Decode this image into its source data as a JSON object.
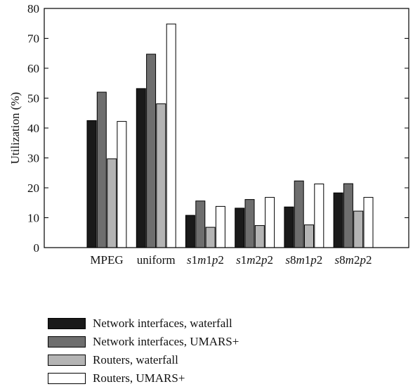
{
  "chart_data": {
    "type": "bar",
    "categories": [
      "MPEG",
      "uniform",
      "s1m1p2",
      "s1m2p2",
      "s8m1p2",
      "s8m2p2"
    ],
    "category_labels": [
      [
        {
          "t": "MPEG",
          "i": false
        }
      ],
      [
        {
          "t": "uniform",
          "i": false
        }
      ],
      [
        {
          "t": "s",
          "i": true
        },
        {
          "t": "1",
          "i": false
        },
        {
          "t": "m",
          "i": true
        },
        {
          "t": "1",
          "i": false
        },
        {
          "t": "p",
          "i": true
        },
        {
          "t": "2",
          "i": false
        }
      ],
      [
        {
          "t": "s",
          "i": true
        },
        {
          "t": "1",
          "i": false
        },
        {
          "t": "m",
          "i": true
        },
        {
          "t": "2",
          "i": false
        },
        {
          "t": "p",
          "i": true
        },
        {
          "t": "2",
          "i": false
        }
      ],
      [
        {
          "t": "s",
          "i": true
        },
        {
          "t": "8",
          "i": false
        },
        {
          "t": "m",
          "i": true
        },
        {
          "t": "1",
          "i": false
        },
        {
          "t": "p",
          "i": true
        },
        {
          "t": "2",
          "i": false
        }
      ],
      [
        {
          "t": "s",
          "i": true
        },
        {
          "t": "8",
          "i": false
        },
        {
          "t": "m",
          "i": true
        },
        {
          "t": "2",
          "i": false
        },
        {
          "t": "p",
          "i": true
        },
        {
          "t": "2",
          "i": false
        }
      ]
    ],
    "series": [
      {
        "name": "Network interfaces, waterfall",
        "color": "#1a1a1a",
        "values": [
          42.5,
          53.2,
          10.8,
          13.2,
          13.6,
          18.3
        ]
      },
      {
        "name": "Network interfaces, UMARS+",
        "color": "#6e6e6e",
        "values": [
          52.0,
          64.7,
          15.6,
          16.1,
          22.3,
          21.4
        ]
      },
      {
        "name": "Routers, waterfall",
        "color": "#b4b4b4",
        "values": [
          29.7,
          48.1,
          6.8,
          7.4,
          7.6,
          12.2
        ]
      },
      {
        "name": "Routers, UMARS+",
        "color": "#ffffff",
        "values": [
          42.2,
          74.8,
          13.8,
          16.8,
          21.3,
          16.8
        ]
      }
    ],
    "ylabel": "Utilization (%)",
    "xlabel": "",
    "ylim": [
      0,
      80
    ],
    "yticks": [
      0,
      10,
      20,
      30,
      40,
      50,
      60,
      70,
      80
    ],
    "grid": false,
    "legend_position": "bottom"
  }
}
